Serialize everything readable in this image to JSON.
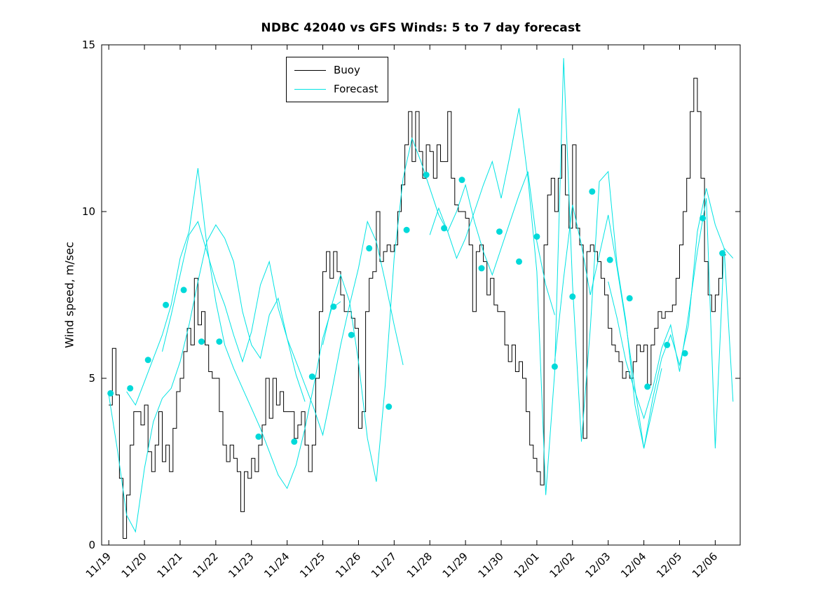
{
  "window": {
    "background": "#ffffff"
  },
  "chart_data": {
    "type": "line",
    "title": "NDBC 42040 vs GFS Winds: 5 to 7 day forecast",
    "xlabel": "",
    "ylabel": "Wind speed, m/sec",
    "ylim": [
      0,
      15
    ],
    "xlim_days": [
      -0.2,
      17.7
    ],
    "grid": false,
    "x_tick_labels": [
      "11/19",
      "11/20",
      "11/21",
      "11/22",
      "11/23",
      "11/24",
      "11/25",
      "11/26",
      "11/27",
      "11/28",
      "11/29",
      "11/30",
      "12/01",
      "12/02",
      "12/03",
      "12/04",
      "12/05",
      "12/06"
    ],
    "y_tick_values": [
      0,
      5,
      10,
      15
    ],
    "y_tick_labels": [
      "0",
      "5",
      "10",
      "15"
    ],
    "legend": {
      "position": "north-inside",
      "items": [
        {
          "label": "Buoy",
          "color": "#000000"
        },
        {
          "label": "Forecast",
          "color": "#00e3e3"
        }
      ]
    },
    "colors": {
      "buoy": "#000000",
      "forecast": "#00e3e3",
      "marker": "#00d9d9"
    },
    "buoy_series": {
      "name": "Buoy",
      "style": "stairs",
      "x_start_days": 0,
      "x_step_days": 0.1,
      "values": [
        4.2,
        5.9,
        4.5,
        2.0,
        0.2,
        1.5,
        3.0,
        4.0,
        4.0,
        3.6,
        4.2,
        2.8,
        2.2,
        3.0,
        4.0,
        2.5,
        3.0,
        2.2,
        3.5,
        4.6,
        5.0,
        5.8,
        6.5,
        6.0,
        8.0,
        6.6,
        7.0,
        6.0,
        5.2,
        5.0,
        5.0,
        4.0,
        3.0,
        2.5,
        3.0,
        2.6,
        2.2,
        1.0,
        2.2,
        2.0,
        2.6,
        2.2,
        3.0,
        3.6,
        5.0,
        3.8,
        5.0,
        4.2,
        4.6,
        4.0,
        4.0,
        4.0,
        3.2,
        3.6,
        4.0,
        3.0,
        2.2,
        3.0,
        5.0,
        7.0,
        8.2,
        8.8,
        8.0,
        8.8,
        8.2,
        7.5,
        7.0,
        7.0,
        6.8,
        6.5,
        3.5,
        4.0,
        7.0,
        8.0,
        8.2,
        10.0,
        8.5,
        8.8,
        9.0,
        8.8,
        9.0,
        10.0,
        10.8,
        12.0,
        13.0,
        11.5,
        13.0,
        11.8,
        11.0,
        12.0,
        11.8,
        11.0,
        12.0,
        11.5,
        11.5,
        13.0,
        11.0,
        10.2,
        10.0,
        10.0,
        9.8,
        9.0,
        7.0,
        8.8,
        9.0,
        8.5,
        7.5,
        8.0,
        7.2,
        7.0,
        7.0,
        6.0,
        5.5,
        6.0,
        5.2,
        5.5,
        5.0,
        4.0,
        3.0,
        2.6,
        2.2,
        1.8,
        9.0,
        10.5,
        11.0,
        10.0,
        11.0,
        12.0,
        10.5,
        9.5,
        12.0,
        9.5,
        9.0,
        3.2,
        8.8,
        9.0,
        8.8,
        8.5,
        8.0,
        7.5,
        6.5,
        6.0,
        5.8,
        5.5,
        5.0,
        5.2,
        5.0,
        5.5,
        6.0,
        5.8,
        6.0,
        4.8,
        6.0,
        6.5,
        7.0,
        6.8,
        7.0,
        7.0,
        7.2,
        8.0,
        9.0,
        10.0,
        11.0,
        13.0,
        14.0,
        13.0,
        11.0,
        8.5,
        7.5,
        7.0,
        7.5,
        8.0,
        8.7,
        8.7
      ]
    },
    "forecast_series": [
      {
        "name": "forecast-run-1",
        "x_start_days": 0.0,
        "x_step_days": 0.25,
        "values": [
          4.5,
          2.8,
          0.9,
          0.4,
          2.3,
          3.7,
          4.4,
          4.7,
          5.5,
          6.6,
          7.9,
          9.1,
          9.6,
          9.2,
          8.5,
          7.0,
          6.0,
          5.6,
          6.9,
          7.4,
          6.2,
          5.1,
          4.3
        ]
      },
      {
        "name": "forecast-run-2",
        "x_start_days": 0.5,
        "x_step_days": 0.25,
        "values": [
          4.6,
          4.2,
          4.9,
          5.6,
          6.3,
          7.2,
          8.6,
          9.4,
          11.3,
          9.0,
          7.3,
          6.0,
          5.3,
          4.7,
          4.1,
          3.5,
          2.8,
          2.1,
          1.7,
          2.4,
          3.5,
          4.8,
          6.2,
          7.1,
          7.3
        ]
      },
      {
        "name": "forecast-run-3",
        "x_start_days": 1.5,
        "x_step_days": 0.25,
        "values": [
          5.8,
          6.9,
          8.1,
          9.3,
          9.7,
          8.8,
          7.9,
          7.2,
          6.3,
          5.5,
          6.4,
          7.8,
          8.5,
          7.1,
          6.2,
          5.5,
          4.8,
          4.1,
          3.3,
          4.6,
          6.0,
          7.2,
          8.3,
          9.7,
          9.1,
          7.9,
          6.6,
          5.4
        ]
      },
      {
        "name": "forecast-run-4",
        "x_start_days": 6.0,
        "x_step_days": 0.25,
        "values": [
          6.0,
          7.2,
          8.1,
          7.3,
          5.5,
          3.2,
          1.9,
          4.8,
          8.6,
          11.0,
          12.2,
          11.5,
          10.7,
          9.9,
          9.4,
          10.0,
          10.8,
          9.7,
          8.8,
          8.1,
          8.9,
          9.7,
          10.5,
          11.2,
          9.1,
          7.8,
          6.9
        ]
      },
      {
        "name": "forecast-run-5",
        "x_start_days": 9.0,
        "x_step_days": 0.25,
        "values": [
          9.3,
          10.1,
          9.4,
          8.6,
          9.2,
          10.0,
          10.8,
          11.5,
          10.4,
          11.7,
          13.1,
          11.0,
          8.2,
          1.5,
          5.2,
          14.6,
          7.8,
          3.1,
          6.5,
          10.9,
          11.2,
          8.4,
          6.7,
          4.2,
          2.9,
          4.1,
          5.3
        ]
      },
      {
        "name": "forecast-run-6",
        "x_start_days": 12.5,
        "x_step_days": 0.25,
        "values": [
          5.5,
          8.0,
          10.2,
          9.0,
          7.5,
          8.7,
          9.9,
          8.3,
          6.6,
          4.7,
          2.9,
          4.4,
          5.6,
          6.3,
          5.4,
          6.6,
          9.4,
          10.7,
          9.6,
          8.9,
          8.6
        ]
      },
      {
        "name": "forecast-run-7",
        "x_start_days": 14.0,
        "x_step_days": 0.25,
        "values": [
          7.9,
          6.8,
          5.5,
          4.6,
          3.8,
          4.7,
          5.9,
          6.6,
          5.2,
          6.9,
          8.8,
          10.4,
          2.9,
          8.9,
          4.3
        ]
      }
    ],
    "forecast_markers": [
      [
        0.05,
        4.55
      ],
      [
        0.6,
        4.7
      ],
      [
        1.1,
        5.55
      ],
      [
        1.6,
        7.2
      ],
      [
        2.1,
        7.65
      ],
      [
        2.6,
        6.1
      ],
      [
        3.1,
        6.1
      ],
      [
        4.2,
        3.25
      ],
      [
        5.2,
        3.1
      ],
      [
        5.7,
        5.05
      ],
      [
        6.3,
        7.15
      ],
      [
        6.8,
        6.3
      ],
      [
        7.3,
        8.9
      ],
      [
        7.85,
        4.15
      ],
      [
        8.35,
        9.45
      ],
      [
        8.9,
        11.1
      ],
      [
        9.4,
        9.5
      ],
      [
        9.9,
        10.95
      ],
      [
        10.45,
        8.3
      ],
      [
        10.95,
        9.4
      ],
      [
        11.5,
        8.5
      ],
      [
        12.0,
        9.25
      ],
      [
        12.5,
        5.35
      ],
      [
        13.0,
        7.45
      ],
      [
        13.55,
        10.6
      ],
      [
        14.05,
        8.55
      ],
      [
        14.6,
        7.4
      ],
      [
        15.1,
        4.75
      ],
      [
        15.65,
        6.0
      ],
      [
        16.15,
        5.75
      ],
      [
        16.65,
        9.8
      ],
      [
        17.2,
        8.75
      ]
    ]
  }
}
